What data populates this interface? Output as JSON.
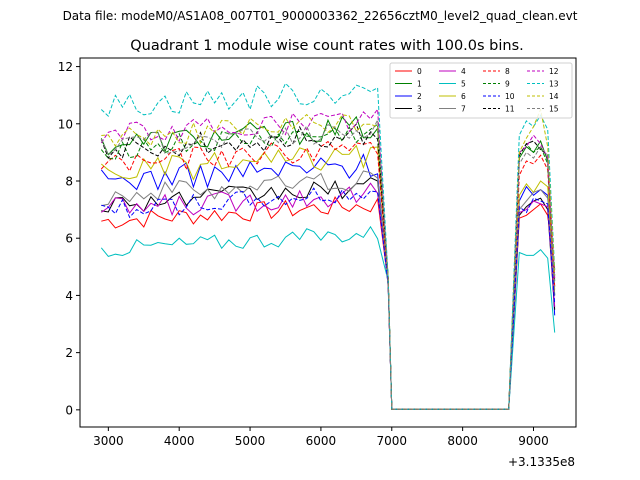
{
  "suptitle": "Data file: modeM0/AS1A08_007T01_9000003362_22656cztM0_level2_quad_clean.evt",
  "chart_data": {
    "type": "line",
    "title": "Quadrant 1 module wise count rates with 100.0s bins.",
    "xlabel": "",
    "ylabel": "",
    "x_offset_label": "+3.1335e8",
    "xlim": [
      2600,
      9600
    ],
    "ylim": [
      -0.6,
      12.3
    ],
    "x_ticks": [
      3000,
      4000,
      5000,
      6000,
      7000,
      8000,
      9000
    ],
    "x_tick_labels": [
      "3000",
      "4000",
      "5000",
      "6000",
      "7000",
      "8000",
      "9000"
    ],
    "y_ticks": [
      0,
      2,
      4,
      6,
      8,
      10,
      12
    ],
    "y_tick_labels": [
      "0",
      "2",
      "4",
      "6",
      "8",
      "10",
      "12"
    ],
    "legend_position": "top-right",
    "legend_columns": 4,
    "grid": false,
    "series": [
      {
        "name": "0",
        "color": "#ff0000",
        "dash": "solid",
        "base": 6.6,
        "amp": 0.35,
        "gap_end": 4.4,
        "rise": [
          6.7,
          6.8,
          7.0,
          7.2,
          6.8,
          4.9
        ]
      },
      {
        "name": "1",
        "color": "#008000",
        "dash": "solid",
        "base": 9.3,
        "amp": 0.45,
        "gap_end": 4.6,
        "rise": [
          8.8,
          9.2,
          9.0,
          9.4,
          8.7,
          4.0
        ]
      },
      {
        "name": "2",
        "color": "#0000ff",
        "dash": "solid",
        "base": 8.0,
        "amp": 0.45,
        "gap_end": 4.3,
        "rise": [
          7.3,
          7.8,
          7.5,
          7.7,
          7.5,
          3.3
        ]
      },
      {
        "name": "3",
        "color": "#000000",
        "dash": "solid",
        "base": 7.2,
        "amp": 0.35,
        "gap_end": 4.4,
        "rise": [
          6.8,
          7.1,
          7.3,
          7.4,
          7.0,
          3.5
        ]
      },
      {
        "name": "4",
        "color": "#bf00bf",
        "dash": "solid",
        "base": 7.0,
        "amp": 0.4,
        "gap_end": 4.4,
        "rise": [
          6.9,
          7.0,
          7.3,
          7.2,
          7.1,
          3.6
        ]
      },
      {
        "name": "5",
        "color": "#00bfbf",
        "dash": "solid",
        "base": 5.6,
        "amp": 0.3,
        "gap_end": 4.5,
        "rise": [
          5.5,
          5.4,
          5.4,
          5.6,
          5.3,
          2.7
        ]
      },
      {
        "name": "6",
        "color": "#bfbf00",
        "dash": "solid",
        "base": 8.3,
        "amp": 0.45,
        "gap_end": 4.4,
        "rise": [
          7.5,
          7.9,
          7.6,
          8.0,
          7.8,
          4.2
        ]
      },
      {
        "name": "7",
        "color": "#808080",
        "dash": "solid",
        "base": 7.5,
        "amp": 0.4,
        "gap_end": 4.3,
        "rise": [
          7.0,
          7.3,
          7.6,
          7.7,
          7.4,
          4.0
        ]
      },
      {
        "name": "8",
        "color": "#ff0000",
        "dash": "dashed",
        "base": 8.6,
        "amp": 0.4,
        "gap_end": 4.5,
        "rise": [
          8.2,
          8.7,
          8.6,
          8.9,
          8.4,
          4.3
        ]
      },
      {
        "name": "9",
        "color": "#008000",
        "dash": "dashed",
        "base": 9.1,
        "amp": 0.4,
        "gap_end": 4.6,
        "rise": [
          8.9,
          9.3,
          9.0,
          9.2,
          8.6,
          4.5
        ]
      },
      {
        "name": "10",
        "color": "#0000ff",
        "dash": "dashed",
        "base": 7.0,
        "amp": 0.35,
        "gap_end": 4.4,
        "rise": [
          7.1,
          6.9,
          7.4,
          7.3,
          7.2,
          3.7
        ]
      },
      {
        "name": "11",
        "color": "#000000",
        "dash": "dashed",
        "base": 9.1,
        "amp": 0.4,
        "gap_end": 4.6,
        "rise": [
          8.9,
          9.3,
          9.4,
          9.1,
          8.9,
          4.7
        ]
      },
      {
        "name": "12",
        "color": "#bf00bf",
        "dash": "dashed",
        "base": 9.6,
        "amp": 0.4,
        "gap_end": 4.5,
        "rise": [
          9.0,
          9.2,
          9.6,
          9.3,
          8.8,
          4.6
        ]
      },
      {
        "name": "13",
        "color": "#00bfbf",
        "dash": "dashed",
        "base": 10.6,
        "amp": 0.45,
        "gap_end": 4.6,
        "rise": [
          9.6,
          10.1,
          9.9,
          10.3,
          9.8,
          4.9
        ]
      },
      {
        "name": "14",
        "color": "#bfbf00",
        "dash": "dashed",
        "base": 9.5,
        "amp": 0.4,
        "gap_end": 4.6,
        "rise": [
          9.0,
          9.5,
          9.9,
          10.5,
          9.2,
          4.7
        ]
      },
      {
        "name": "15",
        "color": "#808080",
        "dash": "dashed",
        "base": 9.2,
        "amp": 0.4,
        "gap_end": 4.5,
        "rise": [
          8.6,
          9.0,
          8.8,
          9.2,
          8.9,
          4.3
        ]
      }
    ]
  }
}
